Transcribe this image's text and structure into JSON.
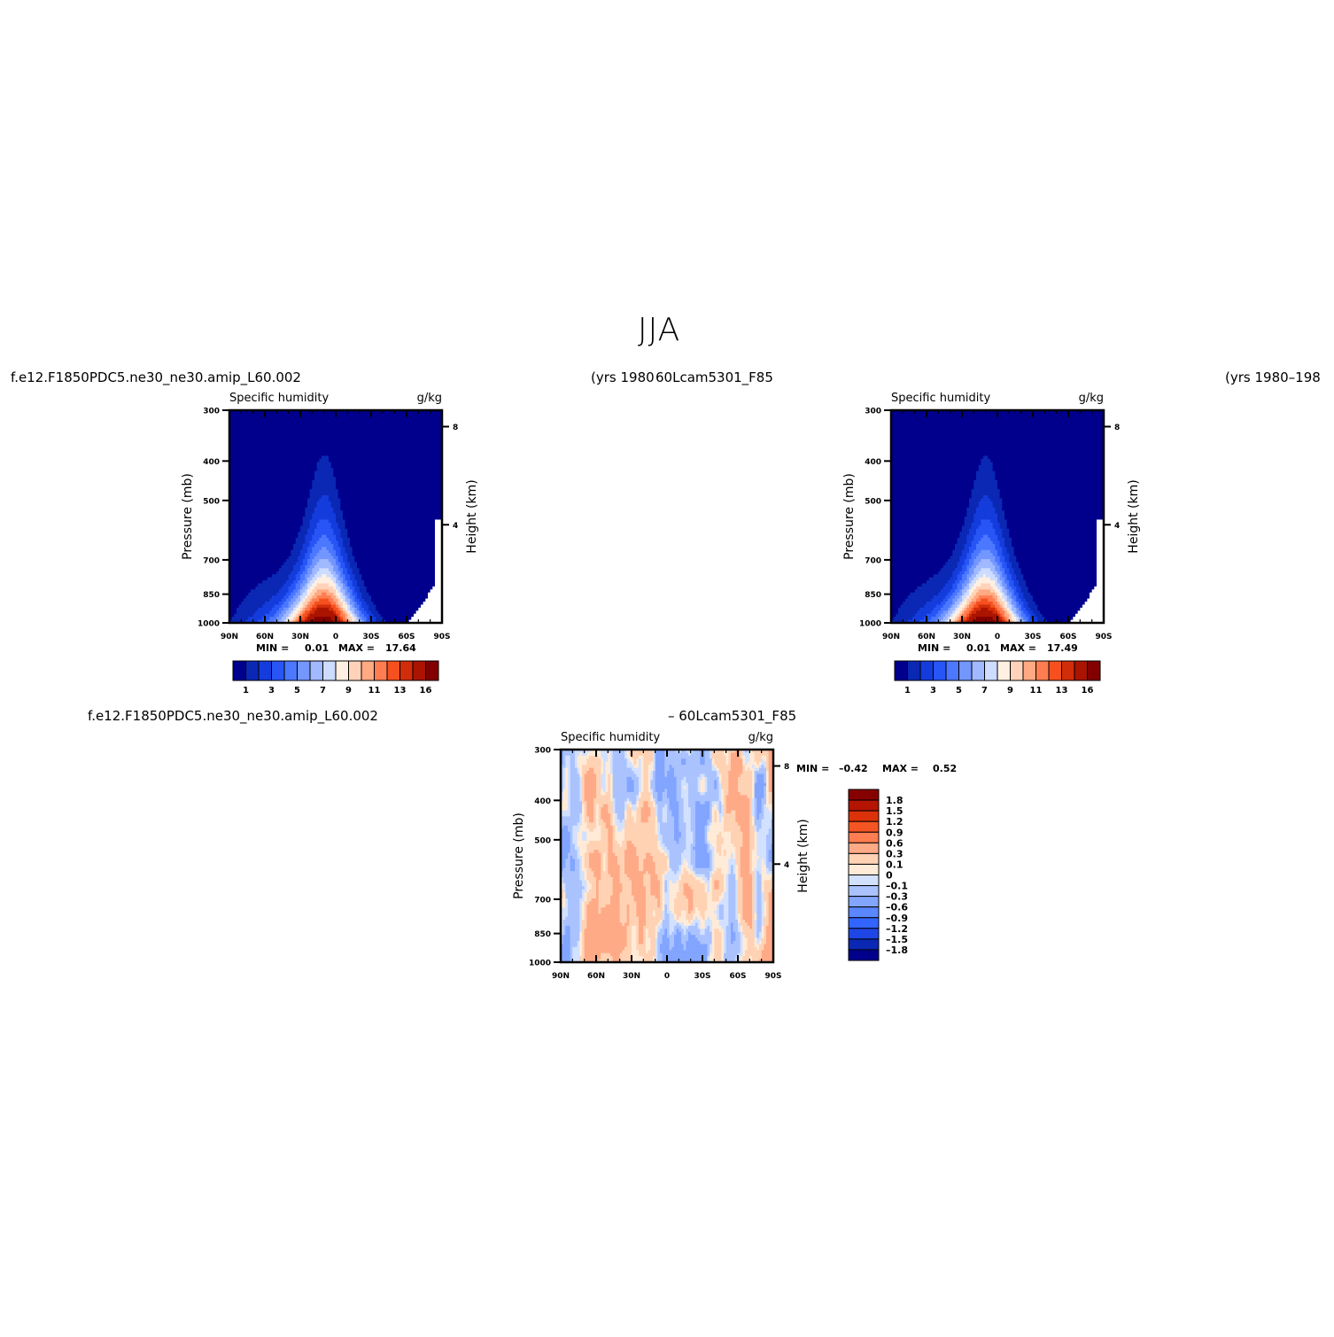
{
  "figure": {
    "title": "JJA",
    "case_left": "f.e12.F1850PDC5.ne30_ne30.amip_L60.002",
    "years_left": "(yrs  1980",
    "case_right": "60Lcam5301_F85",
    "years_right": "(yrs  1980–198",
    "diff_case_left": "f.e12.F1850PDC5.ne30_ne30.amip_L60.002",
    "diff_case_right": "–  60Lcam5301_F85"
  },
  "colors": {
    "abs_palette": [
      "#00008c",
      "#0a28b4",
      "#143cdc",
      "#2855f5",
      "#4b78ff",
      "#7396ff",
      "#a0b9ff",
      "#cddcff",
      "#fff0e1",
      "#ffd2b9",
      "#ffaa82",
      "#ff7d50",
      "#f5501e",
      "#d22d0a",
      "#aa1400",
      "#820000"
    ],
    "diff_palette": [
      "#00008c",
      "#0a28b4",
      "#1e46e6",
      "#3264ff",
      "#5a87ff",
      "#82a5ff",
      "#aac3ff",
      "#d2e1ff",
      "#ffebd7",
      "#ffd2b4",
      "#ffaa87",
      "#ff7d50",
      "#f55523",
      "#dc320a",
      "#b41400",
      "#870000"
    ]
  },
  "chart_data": [
    {
      "type": "heatmap",
      "id": "top-left",
      "title": "Specific humidity",
      "units": "g/kg",
      "xlabel": "",
      "ylabel": "Pressure (mb)",
      "y2label": "Height (km)",
      "x_ticks": [
        "90N",
        "60N",
        "30N",
        "0",
        "30S",
        "60S",
        "90S"
      ],
      "x_range": [
        90,
        -90
      ],
      "y_ticks": [
        300,
        400,
        500,
        700,
        850,
        1000
      ],
      "y_range": [
        300,
        1000
      ],
      "y_scale": "log",
      "height_ticks": [
        8,
        4
      ],
      "min_label": "MIN =",
      "min_value": "0.01",
      "max_label": "MAX =",
      "max_value": "17.64",
      "colorbar_labels": [
        "1",
        "3",
        "5",
        "7",
        "9",
        "11",
        "13",
        "16"
      ],
      "field": {
        "peak": 17.64,
        "peak_lat": 10,
        "surface_scale": 17.64
      }
    },
    {
      "type": "heatmap",
      "id": "top-right",
      "title": "Specific humidity",
      "units": "g/kg",
      "xlabel": "",
      "ylabel": "Pressure (mb)",
      "y2label": "Height (km)",
      "x_ticks": [
        "90N",
        "60N",
        "30N",
        "0",
        "30S",
        "60S",
        "90S"
      ],
      "x_range": [
        90,
        -90
      ],
      "y_ticks": [
        300,
        400,
        500,
        700,
        850,
        1000
      ],
      "y_range": [
        300,
        1000
      ],
      "y_scale": "log",
      "height_ticks": [
        8,
        4
      ],
      "min_label": "MIN =",
      "min_value": "0.01",
      "max_label": "MAX =",
      "max_value": "17.49",
      "colorbar_labels": [
        "1",
        "3",
        "5",
        "7",
        "9",
        "11",
        "13",
        "16"
      ],
      "field": {
        "peak": 17.49,
        "peak_lat": 10,
        "surface_scale": 17.49
      }
    },
    {
      "type": "heatmap",
      "id": "difference",
      "title": "Specific humidity",
      "units": "g/kg",
      "xlabel": "",
      "ylabel": "Pressure (mb)",
      "y2label": "Height (km)",
      "x_ticks": [
        "90N",
        "60N",
        "30N",
        "0",
        "30S",
        "60S",
        "90S"
      ],
      "x_range": [
        90,
        -90
      ],
      "y_ticks": [
        300,
        400,
        500,
        700,
        850,
        1000
      ],
      "y_range": [
        300,
        1000
      ],
      "y_scale": "log",
      "height_ticks": [
        8,
        4
      ],
      "min_label": "MIN =",
      "min_value": "–0.42",
      "max_label": "MAX =",
      "max_value": "0.52",
      "colorbar_labels": [
        "1.8",
        "1.5",
        "1.2",
        "0.9",
        "0.6",
        "0.3",
        "0.1",
        "0",
        "–0.1",
        "–0.3",
        "–0.6",
        "–0.9",
        "–1.2",
        "–1.5",
        "–1.8"
      ]
    }
  ]
}
